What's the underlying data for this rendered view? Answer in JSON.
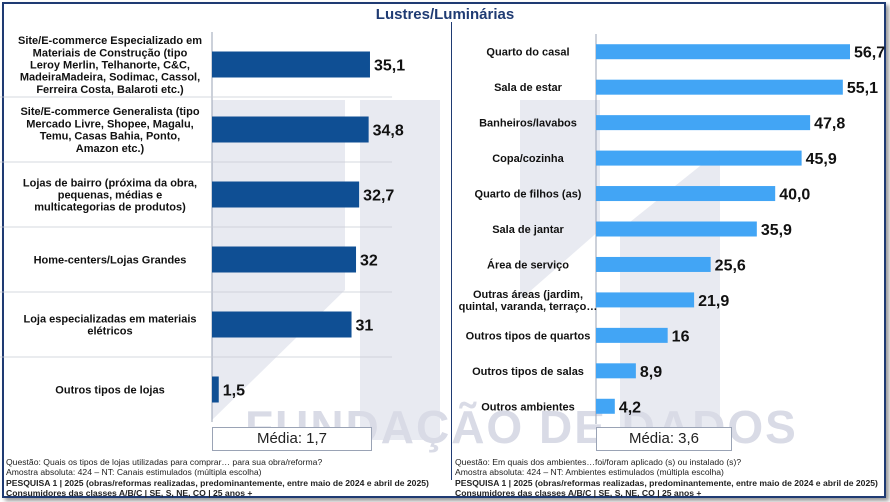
{
  "page_title": "Lustres/Luminárias",
  "watermark": "FUNDAÇÃO DE DADOS",
  "chart_data": [
    {
      "type": "bar",
      "orientation": "horizontal",
      "categories": [
        "Site/E-commerce Especializado em\nMateriais de Construção (tipo\nLeroy Merlin, Telhanorte, C&C,\nMadeiraMadeira, Sodimac, Cassol,\nFerreira Costa, Balaroti etc.)",
        "Site/E-commerce Generalista (tipo\nMercado Livre, Shopee, Magalu,\nTemu, Casas Bahia, Ponto,\nAmazon etc.)",
        "Lojas de bairro (próxima da obra,\npequenas, médias e\nmulticategorias de produtos)",
        "Home-centers/Lojas Grandes",
        "Loja especializadas em materiais\nelétricos",
        "Outros tipos de lojas"
      ],
      "values": [
        35.1,
        34.8,
        32.7,
        32,
        31,
        1.5
      ],
      "value_labels": [
        "35,1",
        "34,8",
        "32,7",
        "32",
        "31",
        "1,5"
      ],
      "xlim": [
        0,
        40
      ],
      "color": "#0f4f94",
      "media": "Média: 1,7"
    },
    {
      "type": "bar",
      "orientation": "horizontal",
      "categories": [
        "Quarto do casal",
        "Sala  de estar",
        "Banheiros/lavabos",
        "Copa/cozinha",
        "Quarto de filhos (as)",
        "Sala de jantar",
        "Área de serviço",
        "Outras áreas (jardim,\nquintal, varanda, terraço…",
        "Outros tipos de quartos",
        "Outros tipos de salas",
        "Outros ambientes"
      ],
      "values": [
        56.7,
        55.1,
        47.8,
        45.9,
        40.0,
        35.9,
        25.6,
        21.9,
        16,
        8.9,
        4.2
      ],
      "value_labels": [
        "56,7",
        "55,1",
        "47,8",
        "45,9",
        "40,0",
        "35,9",
        "25,6",
        "21,9",
        "16",
        "8,9",
        "4,2"
      ],
      "xlim": [
        0,
        60
      ],
      "color": "#42a5f5",
      "media": "Média: 3,6"
    }
  ],
  "notes_left": {
    "question": "Questão: Quais os tipos de lojas utilizadas para comprar… para sua obra/reforma?",
    "sample": "Amostra absoluta: 424 – NT: Canais estimulados (múltipla escolha)",
    "research": "PESQUISA 1 | 2025 (obras/reformas realizadas, predominantemente, entre maio de 2024 e abril de 2025)",
    "consumers": "Consumidores das classes A/B/C | SE, S, NE, CO | 25 anos +"
  },
  "notes_right": {
    "question": "Questão: Em quais dos ambientes…foi/foram aplicado (s) ou instalado (s)?",
    "sample": "Amostra absoluta: 424 – NT: Ambientes estimulados (múltipla escolha)",
    "research": "PESQUISA 1 | 2025 (obras/reformas realizadas, predominantemente, entre maio de 2024 e abril de 2025)",
    "consumers": "Consumidores das classes A/B/C | SE, S, NE, CO | 25 anos +"
  }
}
